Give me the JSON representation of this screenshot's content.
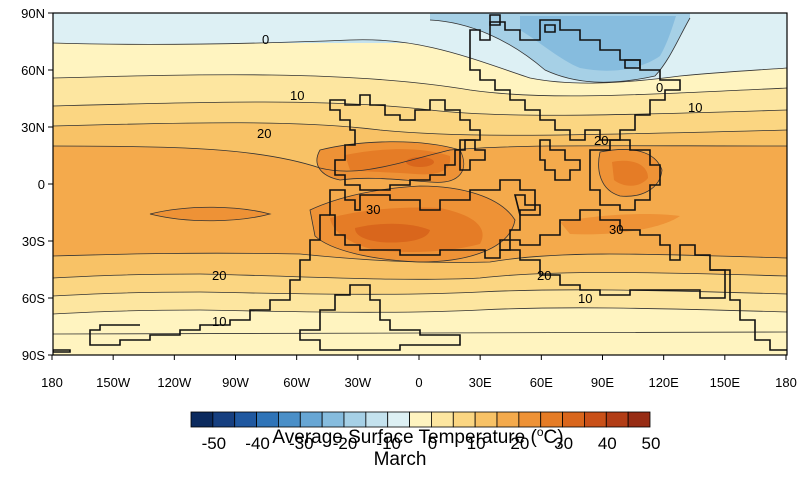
{
  "title": {
    "main": "Average Surface Temperature (",
    "sup": "o",
    "main_end": "C)",
    "month": "March"
  },
  "axes": {
    "lat_labels": [
      "90N",
      "60N",
      "30N",
      "0",
      "30S",
      "60S",
      "90S"
    ],
    "lon_labels": [
      "180",
      "150W",
      "120W",
      "90W",
      "60W",
      "30W",
      "0",
      "30E",
      "60E",
      "90E",
      "120E",
      "150E",
      "180"
    ]
  },
  "colorbar": {
    "labels": [
      "-50",
      "-40",
      "-30",
      "-20",
      "-10",
      "0",
      "10",
      "20",
      "30",
      "40",
      "50"
    ],
    "colors": [
      "#0b2a5e",
      "#163f80",
      "#1f58a0",
      "#2f74b8",
      "#4a8fc8",
      "#67a6d4",
      "#86bcde",
      "#a6d0e6",
      "#c4e2ee",
      "#ddf0f4",
      "#fff4c0",
      "#fde6a0",
      "#fbd682",
      "#f8c266",
      "#f4aa4c",
      "#ee9236",
      "#e57c26",
      "#d9661c",
      "#c95018",
      "#b23d16",
      "#972c14"
    ]
  },
  "contour_labels": [
    {
      "text": "0"
    },
    {
      "text": "0"
    },
    {
      "text": "10"
    },
    {
      "text": "10"
    },
    {
      "text": "10"
    },
    {
      "text": "10"
    },
    {
      "text": "20"
    },
    {
      "text": "20"
    },
    {
      "text": "20"
    },
    {
      "text": "20"
    },
    {
      "text": "30"
    },
    {
      "text": "30"
    }
  ]
}
